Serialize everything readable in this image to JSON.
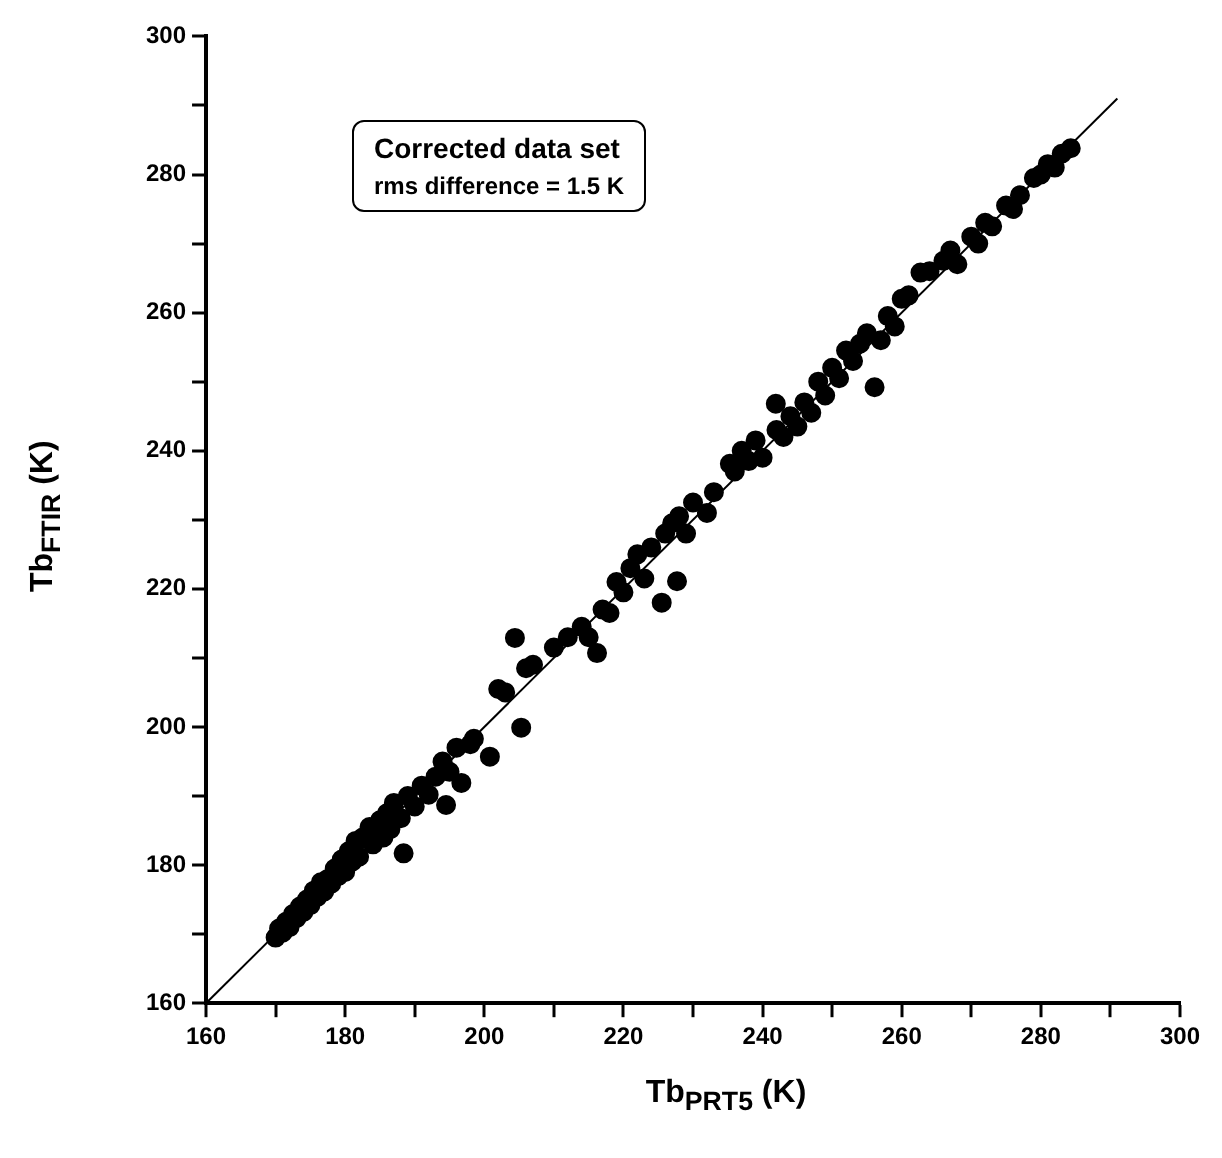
{
  "chart_data": {
    "type": "scatter",
    "xlabel": "Tb$_{PRT5}$ (K)",
    "ylabel": "Tb$_{FTIR}$ (K)",
    "annotations": [
      "Corrected data set",
      "rms difference = 1.5 K"
    ],
    "xlim": [
      160,
      300
    ],
    "ylim": [
      160,
      300
    ],
    "xticks": [
      160,
      {
        "value": 170,
        "label": null
      },
      180,
      {
        "value": 190,
        "label": null
      },
      200,
      {
        "value": 210,
        "label": null
      },
      220,
      {
        "value": 230,
        "label": null
      },
      240,
      {
        "value": 250,
        "label": null
      },
      260,
      {
        "value": 270,
        "label": null
      },
      280,
      {
        "value": 290,
        "label": null
      },
      300
    ],
    "yticks": [
      160,
      {
        "value": 170,
        "label": null
      },
      180,
      {
        "value": 190,
        "label": null
      },
      200,
      {
        "value": 210,
        "label": null
      },
      220,
      {
        "value": 230,
        "label": null
      },
      240,
      {
        "value": 250,
        "label": null
      },
      260,
      {
        "value": 270,
        "label": null
      },
      280,
      {
        "value": 290,
        "label": null
      },
      300
    ],
    "grid": false,
    "legend": false,
    "marker": "circle",
    "series": [
      {
        "color": "#000000",
        "x": [
          170,
          170.5,
          171,
          171.5,
          172,
          172.5,
          173,
          173.5,
          174,
          174.5,
          175,
          175.5,
          176,
          176.5,
          177,
          177.5,
          178,
          178.5,
          179,
          179.5,
          180,
          180.5,
          181,
          181.5,
          182,
          182.5,
          183.5,
          184,
          185,
          185.5,
          186,
          186.5,
          187,
          188,
          188.4,
          189,
          190,
          191,
          192,
          193,
          194,
          194.5,
          195,
          196,
          196.7,
          198,
          198.5,
          200.8,
          202,
          203,
          204.4,
          205.3,
          206,
          207,
          210,
          212,
          214,
          215,
          216.2,
          217,
          218,
          219,
          220,
          221,
          222,
          223,
          224,
          225.5,
          226,
          227,
          227.7,
          228,
          229,
          230,
          232,
          233,
          235.3,
          236,
          237,
          238,
          239,
          240,
          241.9,
          242,
          243,
          244,
          245,
          246,
          247,
          248,
          249,
          250,
          251,
          252,
          253,
          254,
          255,
          256.1,
          257,
          258,
          259,
          260,
          261,
          262.7,
          264,
          266,
          267,
          268,
          270,
          271,
          272,
          273,
          275,
          276,
          277,
          279,
          280,
          281,
          282,
          283,
          284.3
        ],
        "values": [
          169.5,
          170.8,
          170.2,
          171.8,
          171,
          172.9,
          172.3,
          174,
          173.2,
          175,
          174.2,
          176.3,
          175.4,
          177.5,
          176.2,
          178,
          177.3,
          179.5,
          178.4,
          180.8,
          179,
          182,
          180.5,
          183.5,
          181.2,
          184,
          185.5,
          183,
          186.5,
          184,
          187.5,
          185.2,
          189,
          186.8,
          181.7,
          190,
          188.5,
          191.5,
          190.2,
          192.8,
          195,
          188.7,
          193.5,
          197,
          191.9,
          197.5,
          198.3,
          195.7,
          205.5,
          205,
          212.9,
          199.9,
          208.5,
          209,
          211.5,
          213,
          214.5,
          213,
          210.7,
          217,
          216.5,
          221,
          219.5,
          223,
          225,
          221.5,
          226,
          218,
          228,
          229.5,
          221.1,
          230.5,
          228,
          232.5,
          231,
          234,
          238.1,
          237,
          240,
          238.5,
          241.5,
          239,
          246.8,
          243,
          242,
          245,
          243.5,
          247,
          245.5,
          250,
          248,
          252,
          250.5,
          254.5,
          253,
          255.5,
          257,
          249.2,
          256,
          259.5,
          258,
          262,
          262.5,
          265.8,
          266,
          267.5,
          269,
          267,
          271,
          270,
          273,
          272.5,
          275.5,
          275,
          277,
          279.5,
          280,
          281.5,
          281,
          283,
          283.8
        ]
      },
      {
        "type": "line",
        "color": "#000000",
        "marker": "none",
        "line_style": "solid",
        "x": [
          160,
          291
        ],
        "values": [
          160,
          291
        ]
      }
    ]
  }
}
